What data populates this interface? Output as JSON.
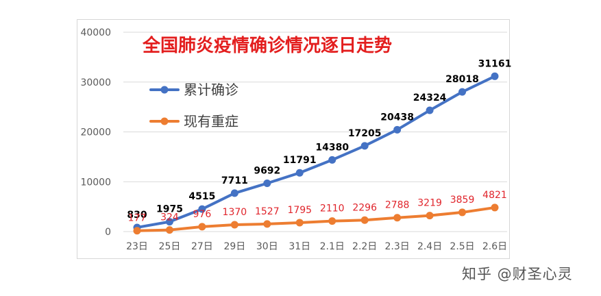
{
  "chart_data": {
    "type": "line",
    "title": "全国肺炎疫情确诊情况逐日走势",
    "xlabel": "",
    "ylabel": "",
    "categories": [
      "23日",
      "25日",
      "27日",
      "29日",
      "30日",
      "31日",
      "2.1日",
      "2.2日",
      "2.3日",
      "2.4日",
      "2.5日",
      "2.6日"
    ],
    "ylim": [
      0,
      40000
    ],
    "yticks": [
      0,
      10000,
      20000,
      30000,
      40000
    ],
    "grid": true,
    "legend_position": "upper-left",
    "series": [
      {
        "name": "累计确诊",
        "color": "#4472c4",
        "label_color": "#000000",
        "values": [
          830,
          1975,
          4515,
          7711,
          9692,
          11791,
          14380,
          17205,
          20438,
          24324,
          28018,
          31161
        ]
      },
      {
        "name": "现有重症",
        "color": "#ed7d31",
        "label_color": "#e0242b",
        "values": [
          177,
          324,
          976,
          1370,
          1527,
          1795,
          2110,
          2296,
          2788,
          3219,
          3859,
          4821
        ]
      }
    ],
    "title_color": "#e31e1e"
  },
  "watermark": "知乎 @财圣心灵"
}
